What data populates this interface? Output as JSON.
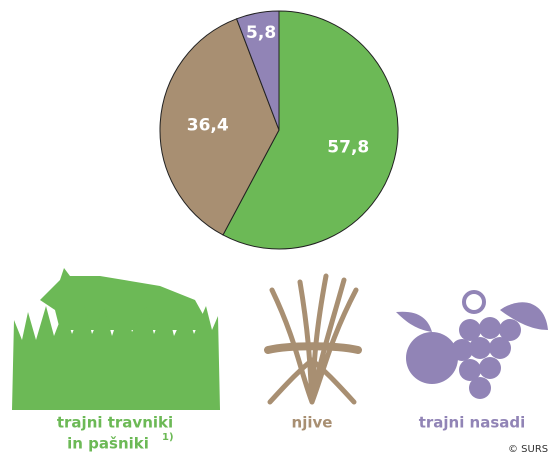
{
  "chart_data": {
    "type": "pie",
    "categories": [
      [
        "trajni travniki",
        "in pašniki"
      ],
      [
        "njive"
      ],
      [
        "trajni nasadi"
      ]
    ],
    "footnote_marker": "1)",
    "values": [
      57.8,
      36.4,
      5.8
    ],
    "value_labels": [
      "57,8",
      "36,4",
      "5,8"
    ],
    "colors": [
      "#6cb956",
      "#a88f72",
      "#9184b6"
    ],
    "source": "© SURS"
  }
}
